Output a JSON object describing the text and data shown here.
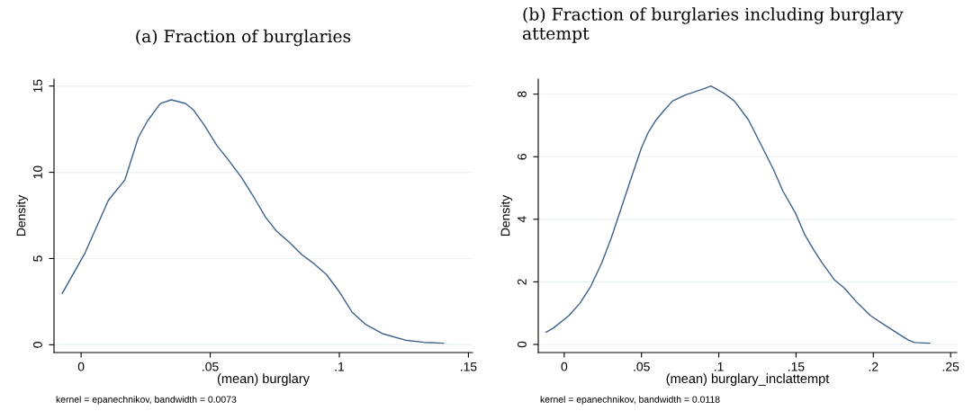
{
  "chart_data": [
    {
      "type": "line",
      "title": "(a) Fraction of burglaries",
      "xlabel": "(mean) burglary",
      "ylabel": "Density",
      "annotations": [
        "kernel = epanechnikov, bandwidth = 0.0073"
      ],
      "grid": "y",
      "xlim": [
        -0.0105,
        0.1516
      ],
      "ylim": [
        -0.45,
        15.4
      ],
      "xticks": [
        {
          "value": 0,
          "label": "0"
        },
        {
          "value": 0.05,
          "label": ".05"
        },
        {
          "value": 0.1,
          "label": ".1"
        },
        {
          "value": 0.15,
          "label": ".15"
        }
      ],
      "yticks": [
        0,
        5,
        10,
        15
      ],
      "series": [
        {
          "color": "#3e6189",
          "x": [
            -0.0073,
            0.0015,
            0.0106,
            0.017,
            0.0221,
            0.0258,
            0.0307,
            0.0349,
            0.0404,
            0.0434,
            0.0477,
            0.0526,
            0.0574,
            0.0623,
            0.0672,
            0.0714,
            0.0757,
            0.0805,
            0.0854,
            0.0903,
            0.0951,
            0.1,
            0.1049,
            0.1103,
            0.117,
            0.1255,
            0.1328,
            0.1404
          ],
          "values": [
            2.98,
            5.32,
            8.39,
            9.57,
            12.0,
            13.0,
            13.99,
            14.2,
            13.99,
            13.63,
            12.73,
            11.55,
            10.65,
            9.66,
            8.48,
            7.4,
            6.59,
            5.96,
            5.23,
            4.69,
            4.06,
            3.07,
            1.9,
            1.17,
            0.63,
            0.27,
            0.14,
            0.09
          ]
        }
      ]
    },
    {
      "type": "line",
      "title": "(b) Fraction of burglaries including burglary attempt",
      "xlabel": "(mean) burglary_inclattempt",
      "ylabel": "Density",
      "annotations": [
        "kernel = epanechnikov, bandwidth = 0.0118"
      ],
      "grid": "y",
      "xlim": [
        -0.0168,
        0.254
      ],
      "ylim": [
        -0.26,
        8.48
      ],
      "xticks": [
        {
          "value": 0,
          "label": "0"
        },
        {
          "value": 0.05,
          "label": ".05"
        },
        {
          "value": 0.1,
          "label": ".1"
        },
        {
          "value": 0.15,
          "label": ".15"
        },
        {
          "value": 0.2,
          "label": ".2"
        },
        {
          "value": 0.25,
          "label": ".25"
        }
      ],
      "yticks": [
        0,
        2,
        4,
        6,
        8
      ],
      "series": [
        {
          "color": "#3e6189",
          "x": [
            -0.0117,
            -0.0071,
            0.003,
            0.0101,
            0.0172,
            0.0243,
            0.0304,
            0.0385,
            0.0445,
            0.05,
            0.0545,
            0.0595,
            0.0646,
            0.07,
            0.0787,
            0.0909,
            0.0949,
            0.103,
            0.1101,
            0.1192,
            0.1273,
            0.1354,
            0.1415,
            0.1496,
            0.1557,
            0.1617,
            0.1668,
            0.1749,
            0.181,
            0.1891,
            0.1982,
            0.2073,
            0.2184,
            0.2227,
            0.2267,
            0.2365
          ],
          "values": [
            0.39,
            0.52,
            0.92,
            1.31,
            1.86,
            2.61,
            3.4,
            4.6,
            5.49,
            6.29,
            6.79,
            7.18,
            7.48,
            7.78,
            7.98,
            8.18,
            8.26,
            8.04,
            7.78,
            7.18,
            6.39,
            5.59,
            4.9,
            4.2,
            3.5,
            3.0,
            2.61,
            2.06,
            1.81,
            1.36,
            0.92,
            0.62,
            0.27,
            0.14,
            0.06,
            0.04
          ]
        }
      ]
    }
  ]
}
